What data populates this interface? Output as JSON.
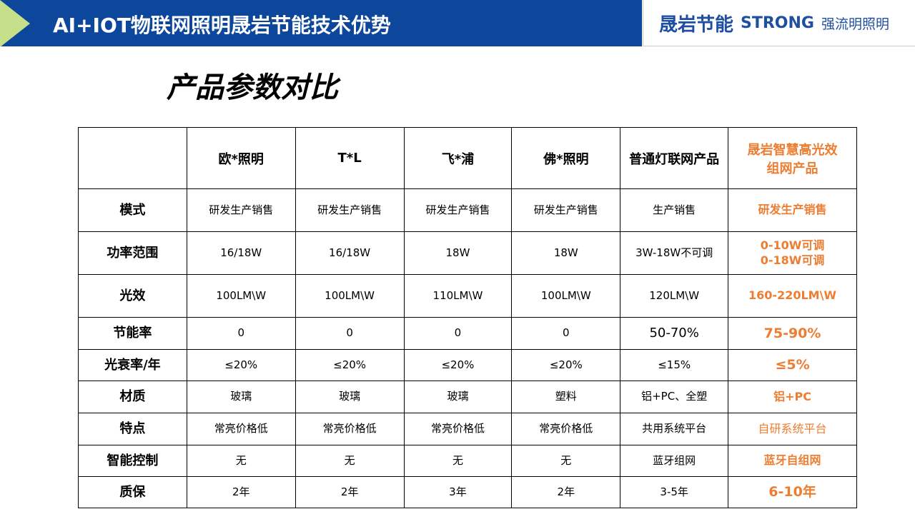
{
  "header": {
    "title": "AI+IOT物联网照明晟岩节能技术优势",
    "logo_cn": "晟岩节能",
    "logo_en": "STRONG",
    "logo_cn2": "强流明照明"
  },
  "heading": "产品参数对比",
  "colors": {
    "header_blue": "#0d479b",
    "accent_orange": "#ed7d31",
    "triangle_green": "#c5df8b"
  },
  "table": {
    "columns": [
      "",
      "欧*照明",
      "T*L",
      "飞*浦",
      "佛*照明",
      "普通灯联网产品",
      "晟岩智慧高光效组网产品"
    ],
    "rows": [
      {
        "label": "模式",
        "cells": [
          "研发生产销售",
          "研发生产销售",
          "研发生产销售",
          "研发生产销售",
          "生产销售",
          "研发生产销售"
        ]
      },
      {
        "label": "功率范围",
        "cells": [
          "16/18W",
          "16/18W",
          "18W",
          "18W",
          "3W-18W不可调",
          "0-10W可调\n0-18W可调"
        ]
      },
      {
        "label": "光效",
        "cells": [
          "100LM\\W",
          "100LM\\W",
          "110LM\\W",
          "100LM\\W",
          "120LM\\W",
          "160-220LM\\W"
        ]
      },
      {
        "label": "节能率",
        "cells": [
          "0",
          "0",
          "0",
          "0",
          "50-70%",
          "75-90%"
        ]
      },
      {
        "label": "光衰率/年",
        "cells": [
          "≤20%",
          "≤20%",
          "≤20%",
          "≤20%",
          "≤15%",
          "≤5%"
        ]
      },
      {
        "label": "材质",
        "cells": [
          "玻璃",
          "玻璃",
          "玻璃",
          "塑料",
          "铝+PC、全塑",
          "铝+PC"
        ]
      },
      {
        "label": "特点",
        "cells": [
          "常亮价格低",
          "常亮价格低",
          "常亮价格低",
          "常亮价格低",
          "共用系统平台",
          "自研系统平台"
        ]
      },
      {
        "label": "智能控制",
        "cells": [
          "无",
          "无",
          "无",
          "无",
          "蓝牙组网",
          "蓝牙自组网"
        ]
      },
      {
        "label": "质保",
        "cells": [
          "2年",
          "2年",
          "3年",
          "2年",
          "3-5年",
          "6-10年"
        ]
      }
    ]
  }
}
